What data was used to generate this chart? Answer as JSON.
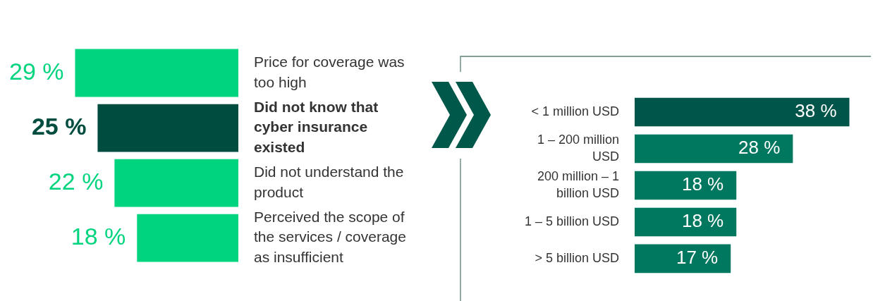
{
  "chart_data": [
    {
      "type": "bar",
      "orientation": "horizontal",
      "categories": [
        "Price for coverage was too high",
        "Did not know that cyber insurance existed",
        "Did not understand the product",
        "Perceived the scope of the services / coverage as insufficient"
      ],
      "values": [
        29,
        25,
        22,
        18
      ],
      "colors": [
        "#00d47e",
        "#004d40",
        "#00d47e",
        "#00d47e"
      ],
      "value_labels": [
        "29 %",
        "25 %",
        "22 %",
        "18 %"
      ],
      "tick_labels": "y",
      "legend": false,
      "grid": false
    },
    {
      "type": "bar",
      "orientation": "horizontal",
      "categories": [
        "< 1 million USD",
        "1 – 200 million USD",
        "200 million – 1 billion USD",
        "1 – 5 billion USD",
        "> 5 billion USD"
      ],
      "values": [
        38,
        28,
        18,
        18,
        17
      ],
      "colors": [
        "#00554a",
        "#00775f",
        "#00775f",
        "#00775f",
        "#00775f"
      ],
      "value_labels": [
        "38 %",
        "28 %",
        "18 %",
        "18 %",
        "17 %"
      ],
      "tick_labels": "y",
      "legend": false,
      "grid": false
    }
  ]
}
